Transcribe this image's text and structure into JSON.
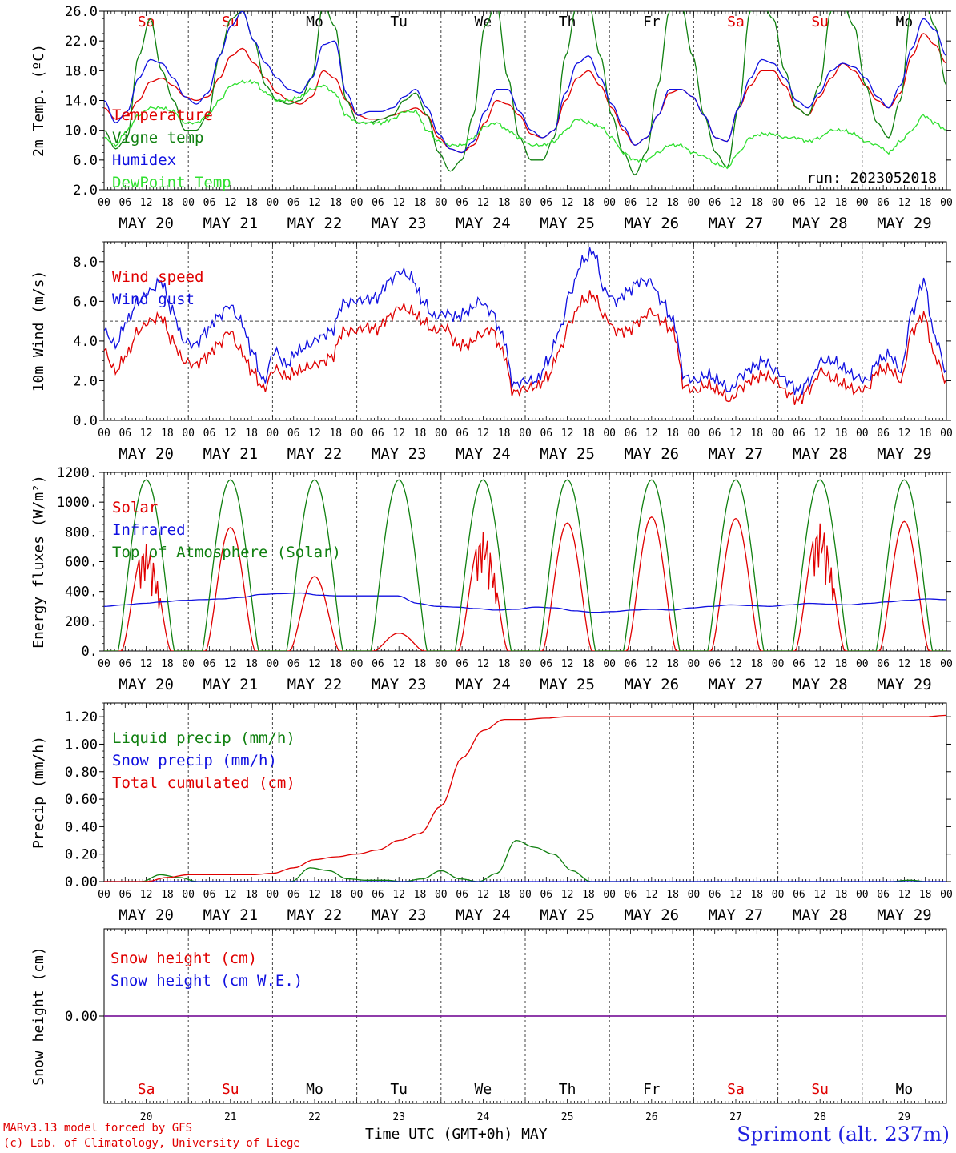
{
  "run_label": "run: 2023052018",
  "hour_labels": [
    "00",
    "06",
    "12",
    "18"
  ],
  "last_hour_label": "00",
  "date_labels": [
    "MAY 20",
    "MAY 21",
    "MAY 22",
    "MAY 23",
    "MAY 24",
    "MAY 25",
    "MAY 26",
    "MAY 27",
    "MAY 28",
    "MAY 29"
  ],
  "weekday_labels": [
    "Sa",
    "Su",
    "Mo",
    "Tu",
    "We",
    "Th",
    "Fr",
    "Sa",
    "Su",
    "Mo"
  ],
  "weekend_indices": [
    0,
    1,
    7,
    8
  ],
  "day_numbers": [
    "20",
    "21",
    "22",
    "23",
    "24",
    "25",
    "26",
    "27",
    "28",
    "29"
  ],
  "xaxis_title": "Time UTC (GMT+0h)",
  "month_label": "MAY",
  "credits": [
    "MARv3.13 model forced by GFS",
    "(c) Lab. of Climatology, University of Liege"
  ],
  "station": "Sprimont (alt. 237m)",
  "colors": {
    "red": "#e00000",
    "green": "#108010",
    "blue": "#1010e0",
    "light_green": "#30e030",
    "purple": "#8020a0"
  },
  "chart_data": [
    {
      "type": "line",
      "ylabel": "2m Temp. (ºC)",
      "ylim": [
        2,
        26
      ],
      "yticks": [
        "2.0",
        "6.0",
        "10.0",
        "14.0",
        "18.0",
        "22.0",
        "26.0"
      ],
      "x_days": 10,
      "series": [
        {
          "name": "Temperature",
          "color": "red",
          "values": [
            13,
            11.5,
            12,
            14,
            16.5,
            17,
            16,
            14.5,
            14,
            14.5,
            17,
            20,
            21,
            19,
            17,
            15,
            14,
            13.5,
            14.5,
            18,
            17,
            14,
            12,
            11.5,
            11.5,
            12,
            12.5,
            13,
            12,
            9,
            7.5,
            7,
            8,
            11,
            14,
            13.5,
            12,
            9.5,
            9,
            10,
            14,
            17,
            18,
            16,
            13,
            10,
            8,
            9,
            12,
            15,
            15.5,
            14.5,
            12,
            9,
            8.5,
            13,
            16,
            18,
            18,
            16,
            13,
            12,
            14.5,
            17,
            19,
            18,
            16,
            14,
            13,
            15,
            20,
            23,
            21.5,
            19
          ]
        },
        {
          "name": "Vigne temp",
          "color": "green",
          "values": [
            10,
            7.5,
            9,
            20,
            25,
            18,
            14,
            10,
            10,
            12,
            20,
            25,
            26,
            22,
            16,
            14,
            13.5,
            14,
            17,
            27,
            24,
            14,
            11,
            11,
            11.5,
            12,
            14,
            15,
            12,
            7,
            4.5,
            6,
            12,
            24,
            27,
            17,
            9,
            6,
            6,
            9,
            20,
            27,
            27,
            20,
            12,
            7,
            4,
            7,
            16,
            26,
            27,
            20,
            12,
            7,
            5,
            13,
            26,
            27,
            25,
            18,
            13,
            12,
            16,
            26,
            27,
            24,
            16,
            11,
            9,
            14,
            27,
            28,
            24,
            16
          ]
        },
        {
          "name": "Humidex",
          "color": "blue",
          "values": [
            14,
            11,
            12.5,
            17,
            19.5,
            19,
            17,
            14.5,
            13.5,
            15,
            20,
            24,
            26,
            22,
            19,
            17,
            15.5,
            15,
            17,
            21.5,
            22,
            15,
            12,
            12.5,
            12.5,
            13,
            14.5,
            15.5,
            13,
            9.5,
            7.5,
            7,
            8.5,
            12.5,
            15.5,
            15.5,
            12.5,
            10,
            9,
            10,
            15,
            19,
            20,
            17,
            13.5,
            10.5,
            8,
            9,
            12,
            15.5,
            15.5,
            14.5,
            12,
            9,
            8.5,
            13,
            17,
            19.5,
            19,
            17,
            14,
            13,
            15,
            18,
            19,
            18.5,
            17,
            14.5,
            13,
            16,
            21,
            25,
            23.5,
            20
          ]
        },
        {
          "name": "DewPoint Temp",
          "color": "light_green",
          "values": [
            9,
            8,
            10,
            12,
            13,
            13,
            12.5,
            11,
            11,
            12,
            14,
            16,
            16.5,
            16.5,
            15,
            14,
            14,
            14.5,
            15.5,
            16,
            15,
            12,
            11,
            11,
            11,
            11.5,
            12.5,
            12.5,
            10,
            8.5,
            8,
            8,
            9,
            10.5,
            11,
            10,
            9,
            8,
            8,
            8.5,
            10,
            11.5,
            11,
            10.5,
            9,
            7,
            6,
            6,
            7,
            8,
            8,
            7,
            6.5,
            5.5,
            5,
            7,
            9,
            9.5,
            9.5,
            9,
            9,
            8.5,
            9,
            10,
            10,
            9.5,
            8.5,
            8,
            7,
            8.5,
            10,
            12,
            11,
            10
          ]
        }
      ]
    },
    {
      "type": "line",
      "ylabel": "10m Wind (m/s)",
      "ylim": [
        0,
        9
      ],
      "yticks": [
        "0.0",
        "2.0",
        "4.0",
        "6.0",
        "8.0"
      ],
      "ref_line": 5,
      "x_days": 10,
      "series": [
        {
          "name": "Wind speed",
          "color": "red",
          "values": [
            3.5,
            2.5,
            3.3,
            4.5,
            5,
            5.2,
            4,
            3,
            2.8,
            3.2,
            3.8,
            4.5,
            3.5,
            2.5,
            1.6,
            2.6,
            2.2,
            2.5,
            2.7,
            2.9,
            3.2,
            4.5,
            4.5,
            4.7,
            4.6,
            5.2,
            5.7,
            5.5,
            5,
            4.5,
            4.7,
            3.8,
            3.8,
            4.3,
            4.6,
            3.5,
            1.4,
            1.6,
            1.7,
            2.2,
            3.5,
            5,
            6,
            6.3,
            5.2,
            4.5,
            4.5,
            5,
            5.5,
            5,
            4.5,
            1.7,
            1.5,
            1.8,
            1.5,
            1,
            1.7,
            2.1,
            2.3,
            2,
            1.4,
            1,
            1.6,
            2.5,
            2.1,
            1.8,
            1.5,
            1.6,
            2.5,
            2.6,
            2,
            4.5,
            5.3,
            3.2,
            2
          ]
        },
        {
          "name": "Wind gust",
          "color": "blue",
          "values": [
            4.5,
            3.8,
            5,
            6,
            6.5,
            7,
            5.5,
            4,
            3.8,
            4.5,
            5.2,
            5.8,
            5,
            3.5,
            2,
            3.5,
            2.8,
            3.5,
            3.8,
            4.2,
            4.5,
            5.9,
            6,
            6.1,
            6.2,
            7,
            7.5,
            7.2,
            6,
            5.2,
            5.4,
            5.2,
            5.5,
            6,
            5.5,
            4.3,
            1.8,
            2,
            2,
            3,
            4.5,
            6.5,
            8,
            8.5,
            6.5,
            6,
            6.5,
            7,
            7,
            6,
            5,
            2.2,
            2,
            2.3,
            2,
            1.5,
            2.3,
            2.7,
            3,
            2.5,
            2,
            1.5,
            2,
            3,
            3,
            2.6,
            2.2,
            2,
            3,
            3.3,
            2.5,
            5.5,
            7,
            4.2,
            2.5
          ]
        }
      ]
    },
    {
      "type": "line",
      "ylabel": "Energy fluxes (W/m²)",
      "ylim": [
        0,
        1200
      ],
      "yticks": [
        "0.",
        "200.",
        "400.",
        "600.",
        "800.",
        "1000.",
        "1200."
      ],
      "x_days": 10,
      "series": [
        {
          "name": "Solar",
          "color": "red",
          "peaks": [
            720,
            830,
            500,
            120,
            800,
            860,
            900,
            890,
            860,
            870
          ]
        },
        {
          "name": "Infrared",
          "color": "blue",
          "values": [
            300,
            310,
            320,
            330,
            340,
            345,
            350,
            360,
            380,
            385,
            390,
            375,
            370,
            370,
            370,
            370,
            320,
            300,
            295,
            285,
            275,
            280,
            295,
            290,
            270,
            260,
            265,
            275,
            280,
            275,
            290,
            300,
            310,
            305,
            300,
            310,
            320,
            315,
            310,
            320,
            330,
            340,
            350,
            345
          ]
        },
        {
          "name": "Top of Atmosphere (Solar)",
          "color": "green",
          "peak": 1150
        }
      ]
    },
    {
      "type": "line",
      "ylabel": "Precip (mm/h)",
      "ylim": [
        0,
        1.3
      ],
      "yticks": [
        "0.00",
        "0.20",
        "0.40",
        "0.60",
        "0.80",
        "1.00",
        "1.20"
      ],
      "x_days": 10,
      "series": [
        {
          "name": "Liquid precip (mm/h)",
          "color": "green",
          "values": [
            0,
            0,
            0,
            0.05,
            0.03,
            0,
            0,
            0,
            0,
            0,
            0,
            0.1,
            0.08,
            0.02,
            0.01,
            0.01,
            0,
            0.02,
            0.08,
            0.02,
            0,
            0.06,
            0.3,
            0.25,
            0.2,
            0.08,
            0,
            0,
            0,
            0,
            0,
            0,
            0,
            0,
            0,
            0,
            0,
            0,
            0,
            0,
            0,
            0,
            0,
            0.01,
            0,
            0
          ]
        },
        {
          "name": "Snow precip (mm/h)",
          "color": "blue",
          "values": [
            0,
            0
          ]
        },
        {
          "name": "Total cumulated (cm)",
          "color": "red",
          "values": [
            0,
            0,
            0,
            0.03,
            0.05,
            0.05,
            0.05,
            0.05,
            0.06,
            0.1,
            0.16,
            0.18,
            0.2,
            0.23,
            0.3,
            0.35,
            0.55,
            0.9,
            1.1,
            1.18,
            1.18,
            1.19,
            1.2,
            1.2,
            1.2,
            1.2,
            1.2,
            1.2,
            1.2,
            1.2,
            1.2,
            1.2,
            1.2,
            1.2,
            1.2,
            1.2,
            1.2,
            1.2,
            1.2,
            1.2,
            1.21
          ]
        }
      ]
    },
    {
      "type": "line",
      "ylabel": "Snow height (cm)",
      "ylim": [
        -1,
        1
      ],
      "yticks": [
        "0.00"
      ],
      "x_days": 10,
      "series": [
        {
          "name": "Snow height (cm)",
          "color": "red",
          "values": [
            0,
            0
          ]
        },
        {
          "name": "Snow height (cm W.E.)",
          "color": "blue",
          "values": [
            0,
            0
          ]
        }
      ]
    }
  ]
}
